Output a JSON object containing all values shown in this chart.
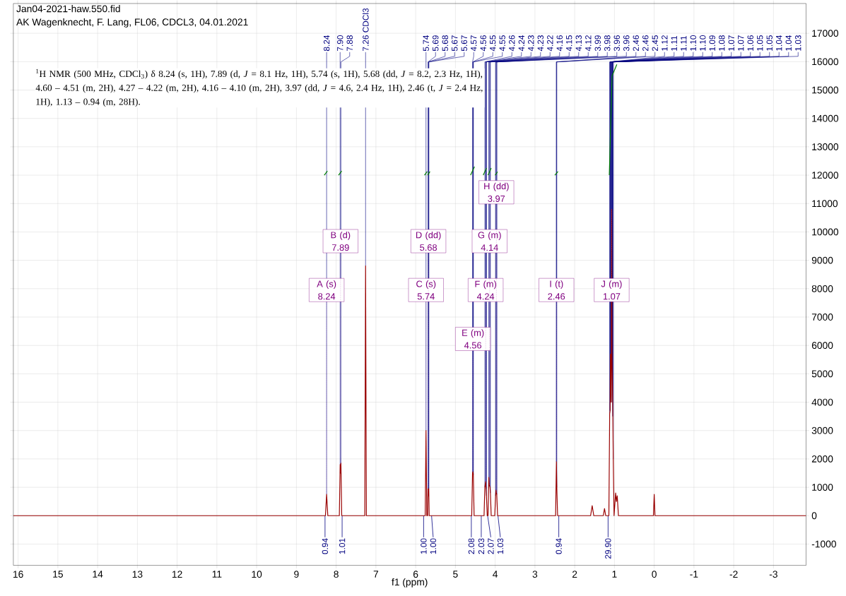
{
  "chart_data": {
    "type": "line",
    "title": "Jan04-2021-haw.550.fid",
    "subtitle": "AK Wagenknecht, F. Lang, FL06, CDCL3, 04.01.2021",
    "xlabel": "f1 (ppm)",
    "xlim": [
      16.12,
      -3.82
    ],
    "ylim": [
      -1750,
      18050
    ],
    "xticks": [
      16,
      15,
      14,
      13,
      12,
      11,
      10,
      9,
      8,
      7,
      6,
      5,
      4,
      3,
      2,
      1,
      0,
      -1,
      -2,
      -3
    ],
    "yticks": [
      -1000,
      0,
      1000,
      2000,
      3000,
      4000,
      5000,
      6000,
      7000,
      8000,
      9000,
      10000,
      11000,
      12000,
      13000,
      14000,
      15000,
      16000,
      17000
    ],
    "grid": true,
    "series": [
      {
        "color": "#990000",
        "x": [
          16.12,
          8.27,
          8.24,
          8.21,
          7.92,
          7.9,
          7.89,
          7.88,
          7.86,
          7.28,
          7.26,
          7.24,
          5.76,
          5.74,
          5.72,
          5.7,
          5.69,
          5.68,
          5.67,
          5.66,
          4.59,
          4.57,
          4.56,
          4.55,
          4.53,
          4.28,
          4.26,
          4.24,
          4.23,
          4.22,
          4.2,
          4.18,
          4.16,
          4.15,
          4.14,
          4.13,
          4.12,
          4.1,
          4.01,
          3.99,
          3.98,
          3.97,
          3.96,
          3.94,
          2.48,
          2.46,
          2.45,
          2.43,
          1.6,
          1.56,
          1.52,
          1.28,
          1.25,
          1.22,
          1.14,
          1.12,
          1.11,
          1.1,
          1.09,
          1.08,
          1.07,
          1.06,
          1.05,
          1.04,
          1.03,
          1.01,
          0.97,
          0.95,
          0.93,
          0.9,
          0.02,
          0.0,
          -0.02,
          -3.82
        ],
        "values": [
          0,
          0,
          750,
          0,
          0,
          1800,
          1500,
          1850,
          0,
          0,
          8800,
          0,
          0,
          3000,
          0,
          0,
          950,
          700,
          950,
          0,
          0,
          1500,
          1550,
          1450,
          0,
          0,
          1000,
          1200,
          950,
          700,
          0,
          0,
          1350,
          1100,
          1050,
          1000,
          800,
          0,
          0,
          700,
          900,
          800,
          750,
          0,
          0,
          1900,
          1000,
          0,
          0,
          350,
          0,
          0,
          250,
          0,
          0,
          3600,
          3700,
          5700,
          4500,
          4000,
          10800,
          5500,
          4500,
          3500,
          2000,
          0,
          800,
          500,
          700,
          0,
          0,
          750,
          0,
          0
        ]
      },
      {
        "color": "#008000",
        "x": [
          8.3,
          8.22,
          8.1,
          7.94,
          7.86,
          7.8,
          5.78,
          5.71,
          5.705,
          5.7,
          5.64,
          5.6,
          4.62,
          4.52,
          4.5,
          4.3,
          4.22,
          4.2,
          4.18,
          4.1,
          4.05,
          4.0,
          3.94,
          3.9,
          2.5,
          2.42,
          2.4,
          1.13,
          1.06,
          0.94
        ],
        "values": [
          12000,
          12150,
          null,
          12000,
          12150,
          null,
          12000,
          12130,
          null,
          12000,
          12130,
          null,
          12000,
          12300,
          null,
          12000,
          12250,
          null,
          12000,
          12250,
          null,
          12000,
          12120,
          null,
          12000,
          12130,
          null,
          12000,
          15500,
          15900
        ]
      }
    ],
    "annotations": [
      "$^{1}$H NMR (500 MHz, CDCl$_{3}$) δ 8.24 (s, 1H), 7.89 (d, *J* = 8.1 Hz, 1H), 5.74 (s, 1H), 5.68 (dd, *J* = 8.2, 2.3 Hz, 1H), 4.60 – 4.51 (m, 2H), 4.27 – 4.22 (m, 2H), 4.16 – 4.10 (m, 2H), 3.97 (dd, *J* = 4.6, 2.4 Hz, 1H), 2.46 (t, *J* = 2.4 Hz, 1H), 1.13 – 0.94 (m, 28H).",
      {
        "text": "8.24",
        "x": 8.24,
        "y": 750
      },
      {
        "text": "7.90",
        "x": 7.9,
        "y": 1800
      },
      {
        "text": "7.88",
        "x": 7.88,
        "y": 1850
      },
      {
        "text": "7.26 CDCl3",
        "x": 7.26,
        "y": 8800
      },
      {
        "text": "5.74",
        "x": 5.74,
        "y": 3000
      },
      {
        "text": "5.69",
        "x": 5.69,
        "y": 950
      },
      {
        "text": "5.68",
        "x": 5.68,
        "y": 700
      },
      {
        "text": "5.67",
        "x": 5.67,
        "y": 950
      },
      {
        "text": "5.67",
        "x": 5.67,
        "y": 950
      },
      {
        "text": "4.57",
        "x": 4.57,
        "y": 1500
      },
      {
        "text": "4.56",
        "x": 4.56,
        "y": 1550
      },
      {
        "text": "4.55",
        "x": 4.55,
        "y": 1450
      },
      {
        "text": "4.55",
        "x": 4.55,
        "y": 1450
      },
      {
        "text": "4.26",
        "x": 4.26,
        "y": 1000
      },
      {
        "text": "4.24",
        "x": 4.24,
        "y": 1200
      },
      {
        "text": "4.23",
        "x": 4.23,
        "y": 950
      },
      {
        "text": "4.23",
        "x": 4.23,
        "y": 950
      },
      {
        "text": "4.22",
        "x": 4.22,
        "y": 700
      },
      {
        "text": "4.16",
        "x": 4.16,
        "y": 1350
      },
      {
        "text": "4.15",
        "x": 4.15,
        "y": 1100
      },
      {
        "text": "4.13",
        "x": 4.13,
        "y": 1000
      },
      {
        "text": "4.12",
        "x": 4.12,
        "y": 800
      },
      {
        "text": "3.99",
        "x": 3.99,
        "y": 700
      },
      {
        "text": "3.98",
        "x": 3.98,
        "y": 900
      },
      {
        "text": "3.96",
        "x": 3.96,
        "y": 750
      },
      {
        "text": "3.96",
        "x": 3.96,
        "y": 750
      },
      {
        "text": "2.46",
        "x": 2.46,
        "y": 1900
      },
      {
        "text": "2.46",
        "x": 2.46,
        "y": 1900
      },
      {
        "text": "2.45",
        "x": 2.45,
        "y": 1000
      },
      {
        "text": "1.12",
        "x": 1.12,
        "y": 3600
      },
      {
        "text": "1.11",
        "x": 1.11,
        "y": 3700
      },
      {
        "text": "1.11",
        "x": 1.11,
        "y": 3700
      },
      {
        "text": "1.10",
        "x": 1.1,
        "y": 5700
      },
      {
        "text": "1.10",
        "x": 1.1,
        "y": 5700
      },
      {
        "text": "1.09",
        "x": 1.09,
        "y": 4500
      },
      {
        "text": "1.08",
        "x": 1.08,
        "y": 4000
      },
      {
        "text": "1.07",
        "x": 1.07,
        "y": 10800
      },
      {
        "text": "1.07",
        "x": 1.07,
        "y": 10800
      },
      {
        "text": "1.06",
        "x": 1.06,
        "y": 5500
      },
      {
        "text": "1.05",
        "x": 1.05,
        "y": 4500
      },
      {
        "text": "1.05",
        "x": 1.05,
        "y": 4500
      },
      {
        "text": "1.04",
        "x": 1.04,
        "y": 3500
      },
      {
        "text": "1.04",
        "x": 1.04,
        "y": 3500
      },
      {
        "text": "1.03",
        "x": 1.03,
        "y": 2000
      },
      {
        "text": "A (s) 8.24",
        "x": 8.24,
        "y": 750
      },
      {
        "text": "B (d) 7.89",
        "x": 7.89,
        "y": 1500
      },
      {
        "text": "C (s) 5.74",
        "x": 5.74,
        "y": 3000
      },
      {
        "text": "D (dd) 5.68",
        "x": 5.68,
        "y": 700
      },
      {
        "text": "E (m) 4.56",
        "x": 4.56,
        "y": 1550
      },
      {
        "text": "F (m) 4.24",
        "x": 4.24,
        "y": 1200
      },
      {
        "text": "G (m) 4.14",
        "x": 4.14,
        "y": 1050
      },
      {
        "text": "H (dd) 3.97",
        "x": 3.97,
        "y": 800
      },
      {
        "text": "I (t) 2.46",
        "x": 2.46,
        "y": 1900
      },
      {
        "text": "J (m) 1.07",
        "x": 1.07,
        "y": 10800
      },
      {
        "text": "0.94",
        "x": 8.28,
        "y": 0
      },
      {
        "text": "1.01",
        "x": 7.85,
        "y": 0
      },
      {
        "text": "1.00",
        "x": 5.8,
        "y": 0
      },
      {
        "text": "1.00",
        "x": 5.6,
        "y": 0
      },
      {
        "text": "2.08",
        "x": 4.6,
        "y": 0
      },
      {
        "text": "2.03",
        "x": 4.35,
        "y": 0
      },
      {
        "text": "2.07",
        "x": 4.19,
        "y": 0
      },
      {
        "text": "1.03",
        "x": 3.93,
        "y": 0
      },
      {
        "text": "0.94",
        "x": 2.4,
        "y": 0
      },
      {
        "text": "29.90",
        "x": 1.16,
        "y": 0
      }
    ]
  }
}
